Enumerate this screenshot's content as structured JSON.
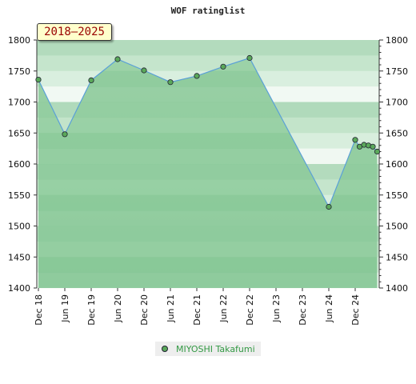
{
  "chart_data": {
    "type": "area",
    "title": "WOF ratinglist",
    "badge": "2018–2025",
    "ylim": [
      1400,
      1800
    ],
    "yticks": [
      1400,
      1450,
      1500,
      1550,
      1600,
      1650,
      1700,
      1750,
      1800
    ],
    "yticks_right": [
      1400,
      1450,
      1500,
      1550,
      1600,
      1650,
      1700,
      1750,
      1800
    ],
    "xticks": [
      "Dec 18",
      "Jun 19",
      "Dec 19",
      "Jun 20",
      "Dec 20",
      "Jun 21",
      "Dec 21",
      "Jun 22",
      "Dec 22",
      "Jun 23",
      "Dec 23",
      "Jun 24",
      "Dec 24"
    ],
    "grid": true,
    "legend_position": "bottom-center",
    "series": [
      {
        "name": "MIYOSHI Takafumi",
        "color": "#5aa0d8",
        "points": [
          {
            "x": "2018-12",
            "y": 1736
          },
          {
            "x": "2019-06",
            "y": 1648
          },
          {
            "x": "2019-12",
            "y": 1735
          },
          {
            "x": "2020-06",
            "y": 1769
          },
          {
            "x": "2020-12",
            "y": 1751
          },
          {
            "x": "2021-06",
            "y": 1732
          },
          {
            "x": "2021-12",
            "y": 1742
          },
          {
            "x": "2022-06",
            "y": 1757
          },
          {
            "x": "2022-12",
            "y": 1771
          },
          {
            "x": "2024-06",
            "y": 1531
          },
          {
            "x": "2024-12",
            "y": 1639
          },
          {
            "x": "2025-01",
            "y": 1628
          },
          {
            "x": "2025-02",
            "y": 1631
          },
          {
            "x": "2025-03",
            "y": 1630
          },
          {
            "x": "2025-04",
            "y": 1628
          },
          {
            "x": "2025-05",
            "y": 1620
          }
        ]
      }
    ],
    "colors": {
      "band_light": [
        "#b5dcbf",
        "#c6e5cd",
        "#d8eedd",
        "#f0f8f2"
      ],
      "band_mid": [
        "#a9d5b3",
        "#9ccfa8",
        "#91c99d"
      ],
      "band_dark": [
        "#7ec48f",
        "#83c693",
        "#89c898"
      ],
      "fill_top": "#a8d8b2",
      "fill_bottom": "#7dc38e",
      "marker": "#5aa85a"
    }
  }
}
